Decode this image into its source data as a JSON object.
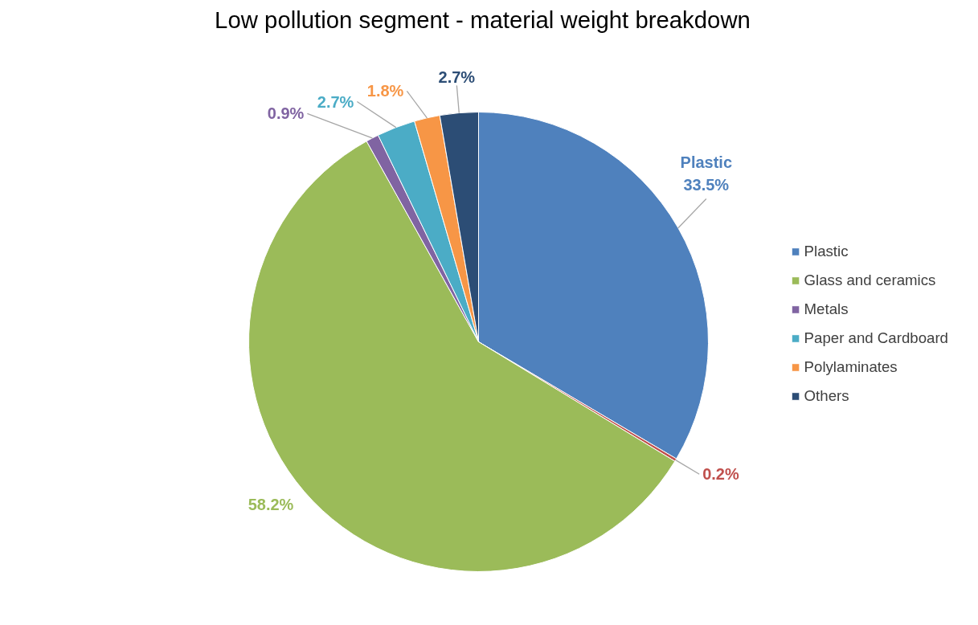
{
  "chart_data": {
    "type": "pie",
    "title": "Low pollution segment - material weight breakdown",
    "categories": [
      "Plastic",
      null,
      "Glass and ceramics",
      "Metals",
      "Paper and Cardboard",
      "Polylaminates",
      "Others"
    ],
    "values": [
      33.5,
      0.2,
      58.2,
      0.9,
      2.7,
      1.8,
      2.7
    ],
    "colors": [
      "#4f81bd",
      "#c0504d",
      "#9bbb59",
      "#8064a2",
      "#4bacc6",
      "#f79646",
      "#2c4d75"
    ],
    "value_labels": [
      "Plastic\n33.5%",
      "0.2%",
      "58.2%",
      "0.9%",
      "2.7%",
      "1.8%",
      "2.7%"
    ],
    "legend": "right"
  }
}
